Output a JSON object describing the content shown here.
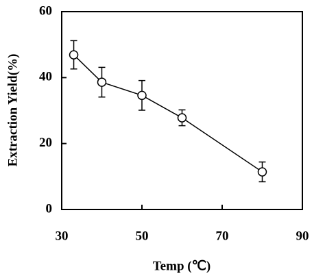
{
  "chart_data": {
    "type": "line",
    "x_label": "Temp (℃)",
    "y_label": "Extraction Yield(%)",
    "x": [
      33,
      40,
      50,
      60,
      80
    ],
    "series": [
      {
        "name": "Extraction yield",
        "color": "#000000",
        "values": [
          46.9,
          38.6,
          34.6,
          27.8,
          11.4
        ],
        "errors": [
          4.3,
          4.5,
          4.5,
          2.4,
          3.0
        ]
      }
    ],
    "xlim": [
      30,
      90
    ],
    "ylim": [
      0,
      60
    ],
    "xticks": [
      30,
      50,
      70,
      90
    ],
    "yticks": [
      0,
      20,
      40,
      60
    ],
    "grid": false
  }
}
